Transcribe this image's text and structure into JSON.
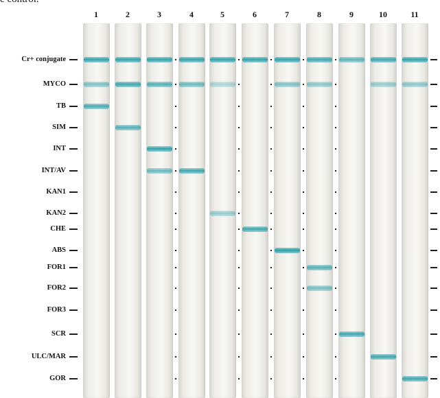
{
  "caption": "e control.",
  "lanes": [
    "1",
    "2",
    "3",
    "4",
    "5",
    "6",
    "7",
    "8",
    "9",
    "10",
    "11"
  ],
  "row_labels": [
    "Cr+ conjugate",
    "MYCO",
    "TB",
    "SIM",
    "INT",
    "INT/AV",
    "KAN1",
    "KAN2",
    "CHE",
    "ABS",
    "FOR1",
    "FOR2",
    "FOR3",
    "SCR",
    "ULC/MAR",
    "GOR"
  ],
  "band_color": "#1f9aa5",
  "bands": [
    {
      "lane": "1",
      "row": "Cr+ conjugate",
      "intensity": 0.9
    },
    {
      "lane": "1",
      "row": "MYCO",
      "intensity": 0.55
    },
    {
      "lane": "1",
      "row": "TB",
      "intensity": 0.8
    },
    {
      "lane": "2",
      "row": "Cr+ conjugate",
      "intensity": 0.9
    },
    {
      "lane": "2",
      "row": "MYCO",
      "intensity": 0.85
    },
    {
      "lane": "2",
      "row": "SIM",
      "intensity": 0.75
    },
    {
      "lane": "3",
      "row": "Cr+ conjugate",
      "intensity": 0.9
    },
    {
      "lane": "3",
      "row": "MYCO",
      "intensity": 0.75
    },
    {
      "lane": "3",
      "row": "INT",
      "intensity": 0.9
    },
    {
      "lane": "3",
      "row": "INT/AV",
      "intensity": 0.65
    },
    {
      "lane": "4",
      "row": "Cr+ conjugate",
      "intensity": 0.9
    },
    {
      "lane": "4",
      "row": "MYCO",
      "intensity": 0.65
    },
    {
      "lane": "4",
      "row": "INT/AV",
      "intensity": 0.85
    },
    {
      "lane": "5",
      "row": "Cr+ conjugate",
      "intensity": 0.9
    },
    {
      "lane": "5",
      "row": "MYCO",
      "intensity": 0.35
    },
    {
      "lane": "5",
      "row": "KAN2",
      "intensity": 0.45
    },
    {
      "lane": "6",
      "row": "Cr+ conjugate",
      "intensity": 0.9
    },
    {
      "lane": "6",
      "row": "CHE",
      "intensity": 0.85
    },
    {
      "lane": "7",
      "row": "Cr+ conjugate",
      "intensity": 0.9
    },
    {
      "lane": "7",
      "row": "MYCO",
      "intensity": 0.55
    },
    {
      "lane": "7",
      "row": "ABS",
      "intensity": 0.95
    },
    {
      "lane": "8",
      "row": "Cr+ conjugate",
      "intensity": 0.85
    },
    {
      "lane": "8",
      "row": "MYCO",
      "intensity": 0.5
    },
    {
      "lane": "8",
      "row": "FOR1",
      "intensity": 0.75
    },
    {
      "lane": "8",
      "row": "FOR2",
      "intensity": 0.6
    },
    {
      "lane": "9",
      "row": "Cr+ conjugate",
      "intensity": 0.7
    },
    {
      "lane": "9",
      "row": "SCR",
      "intensity": 0.85
    },
    {
      "lane": "10",
      "row": "Cr+ conjugate",
      "intensity": 0.85
    },
    {
      "lane": "10",
      "row": "MYCO",
      "intensity": 0.45
    },
    {
      "lane": "10",
      "row": "ULC/MAR",
      "intensity": 0.85
    },
    {
      "lane": "11",
      "row": "Cr+ conjugate",
      "intensity": 0.9
    },
    {
      "lane": "11",
      "row": "MYCO",
      "intensity": 0.5
    },
    {
      "lane": "11",
      "row": "GOR",
      "intensity": 0.85
    }
  ]
}
